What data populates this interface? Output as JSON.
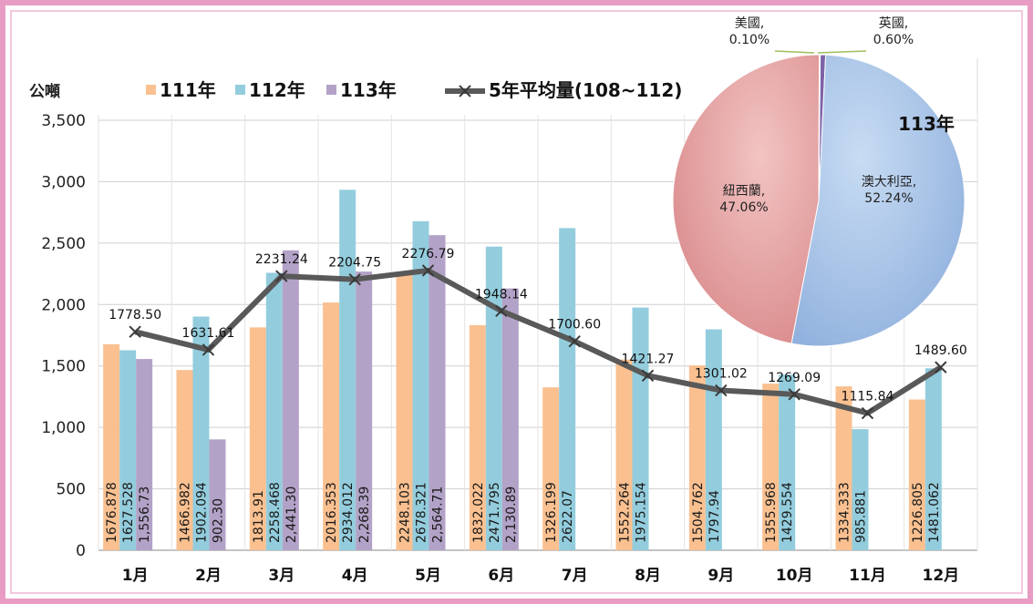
{
  "chart_data": {
    "type": "bar",
    "ylabel": "公噸",
    "ylim": [
      0,
      3500
    ],
    "yticks": [
      "0",
      "500",
      "1,000",
      "1,500",
      "2,000",
      "2,500",
      "3,000",
      "3,500"
    ],
    "categories": [
      "1月",
      "2月",
      "3月",
      "4月",
      "5月",
      "6月",
      "7月",
      "8月",
      "9月",
      "10月",
      "11月",
      "12月"
    ],
    "grid": true,
    "legend_position": "top",
    "series": [
      {
        "name": "111年",
        "type": "bar",
        "color": "#FAC090",
        "values": [
          1676.878,
          1466.982,
          1813.91,
          2016.353,
          2248.103,
          1832.022,
          1326.199,
          1552.264,
          1504.762,
          1355.968,
          1334.333,
          1226.805
        ],
        "labels": [
          "1676.878",
          "1466.982",
          "1813.91",
          "2016.353",
          "2248.103",
          "1832.022",
          "1326.199",
          "1552.264",
          "1504.762",
          "1355.968",
          "1334.333",
          "1226.805"
        ]
      },
      {
        "name": "112年",
        "type": "bar",
        "color": "#93CDDD",
        "values": [
          1627.528,
          1902.094,
          2258.468,
          2934.012,
          2678.321,
          2471.795,
          2622.07,
          1975.154,
          1797.94,
          1429.554,
          985.881,
          1481.062
        ],
        "labels": [
          "1627.528",
          "1902.094",
          "2258.468",
          "2934.012",
          "2678.321",
          "2471.795",
          "2622.07",
          "1975.154",
          "1797.94",
          "1429.554",
          "985.881",
          "1481.062"
        ]
      },
      {
        "name": "113年",
        "type": "bar",
        "color": "#B3A2C7",
        "values": [
          1556.73,
          902.3,
          2441.3,
          2268.39,
          2564.71,
          2130.89,
          null,
          null,
          null,
          null,
          null,
          null
        ],
        "labels": [
          "1,556.73",
          "902.30",
          "2,441.30",
          "2,268.39",
          "2,564.71",
          "2,130.89",
          "",
          "",
          "",
          "",
          "",
          ""
        ]
      },
      {
        "name": "5年平均量(108~112)",
        "type": "line",
        "color": "#595959",
        "values": [
          1778.5,
          1631.61,
          2231.24,
          2204.75,
          2276.79,
          1948.14,
          1700.6,
          1421.27,
          1301.02,
          1269.09,
          1115.84,
          1489.6
        ],
        "labels": [
          "1778.50",
          "1631.61",
          "2231.24",
          "2204.75",
          "2276.79",
          "1948.14",
          "1700.60",
          "1421.27",
          "1301.02",
          "1269.09",
          "1115.84",
          "1489.60"
        ]
      }
    ],
    "inset_pie": {
      "type": "pie",
      "title": "113年",
      "slices": [
        {
          "name": "澳大利亞",
          "percent": 52.24,
          "label": "澳大利亞,\n52.24%",
          "color": "#9DBBE3"
        },
        {
          "name": "紐西蘭",
          "percent": 47.06,
          "label": "紐西蘭,\n47.06%",
          "color": "#E49F9E"
        },
        {
          "name": "美國",
          "percent": 0.1,
          "label": "美國,\n0.10%",
          "color": "#A8C060"
        },
        {
          "name": "英國",
          "percent": 0.6,
          "label": "英國,\n0.60%",
          "color": "#7D63A8"
        }
      ]
    }
  }
}
